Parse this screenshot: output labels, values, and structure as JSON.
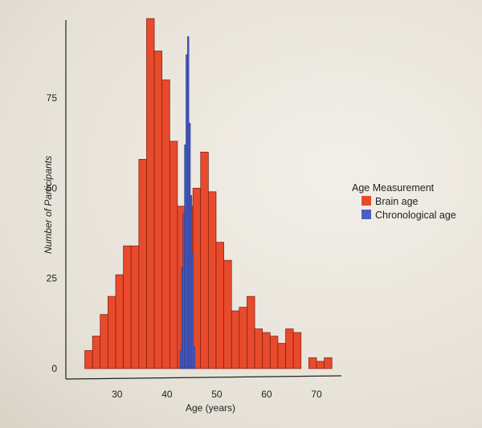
{
  "colors": {
    "brain": "#e84a2c",
    "chronological": "#4a5fc4",
    "axis": "#222222"
  },
  "chart_data": {
    "type": "bar",
    "xlabel": "Age (years)",
    "ylabel": "Number of Participants",
    "xlim": [
      21,
      75
    ],
    "ylim": [
      0,
      100
    ],
    "x_ticks": [
      30,
      40,
      50,
      60,
      70
    ],
    "y_ticks": [
      0,
      25,
      50,
      75
    ],
    "bin_width": 1.55,
    "legend": {
      "title": "Age Measurement",
      "position": "right",
      "entries": [
        "Brain age",
        "Chronological age"
      ]
    },
    "series": [
      {
        "name": "Brain age",
        "color": "#e84a2c",
        "bins_start": [
          23.5,
          25.05,
          26.6,
          28.15,
          29.7,
          31.25,
          32.8,
          34.35,
          35.9,
          37.45,
          39.0,
          40.55,
          42.1,
          43.65,
          45.2,
          46.75,
          48.3,
          49.85,
          51.4,
          52.95,
          54.5,
          56.05,
          57.6,
          59.15,
          60.7,
          62.25,
          63.8,
          65.35,
          66.9,
          68.45,
          70.0,
          71.55
        ],
        "values": [
          5,
          9,
          15,
          20,
          26,
          34,
          34,
          58,
          97,
          88,
          80,
          63,
          45,
          45,
          50,
          60,
          49,
          35,
          30,
          16,
          17,
          20,
          11,
          10,
          9,
          7,
          11,
          10,
          0,
          3,
          2,
          3
        ]
      },
      {
        "name": "Chronological age",
        "color": "#4a5fc4",
        "bins_start": [
          42.6,
          42.9,
          43.2,
          43.5,
          43.8,
          44.1,
          44.4,
          44.7,
          45.0,
          45.3
        ],
        "values": [
          5,
          28,
          43,
          62,
          87,
          92,
          68,
          48,
          32,
          6
        ]
      }
    ]
  }
}
